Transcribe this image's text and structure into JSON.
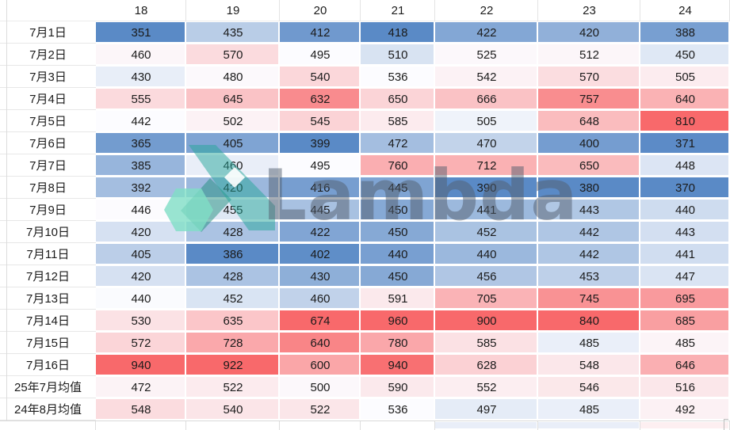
{
  "watermark": {
    "text": "Lambda",
    "logo_colors": {
      "ribbon_teal": "#26A69A",
      "leg_dark_teal": "#1F8E7E",
      "hex_mint": "#7FDEC6",
      "notch_white": "#FFFFFF"
    }
  },
  "chart_data": {
    "type": "heatmap",
    "title": "",
    "columns": [
      "18",
      "19",
      "20",
      "21",
      "22",
      "23",
      "24"
    ],
    "row_labels": [
      "7月1日",
      "7月2日",
      "7月3日",
      "7月4日",
      "7月5日",
      "7月6日",
      "7月7日",
      "7月8日",
      "7月9日",
      "7月10日",
      "7月11日",
      "7月12日",
      "7月13日",
      "7月14日",
      "7月15日",
      "7月16日",
      "25年7月均值",
      "24年8月均值"
    ],
    "values": [
      [
        351,
        435,
        412,
        418,
        422,
        420,
        388
      ],
      [
        460,
        570,
        495,
        510,
        525,
        512,
        450
      ],
      [
        430,
        480,
        540,
        536,
        542,
        570,
        505
      ],
      [
        555,
        645,
        632,
        650,
        666,
        757,
        640
      ],
      [
        442,
        502,
        545,
        585,
        505,
        648,
        810
      ],
      [
        365,
        405,
        399,
        472,
        470,
        400,
        371
      ],
      [
        385,
        460,
        495,
        760,
        712,
        650,
        448
      ],
      [
        392,
        420,
        416,
        445,
        390,
        380,
        370
      ],
      [
        446,
        455,
        445,
        450,
        441,
        443,
        440
      ],
      [
        420,
        428,
        422,
        450,
        452,
        442,
        443
      ],
      [
        405,
        386,
        402,
        440,
        440,
        442,
        441
      ],
      [
        420,
        428,
        430,
        450,
        456,
        453,
        447
      ],
      [
        440,
        452,
        460,
        591,
        705,
        745,
        695
      ],
      [
        530,
        635,
        674,
        960,
        900,
        840,
        685
      ],
      [
        572,
        728,
        640,
        780,
        585,
        485,
        485
      ],
      [
        940,
        922,
        600,
        940,
        628,
        548,
        646
      ],
      [
        472,
        522,
        500,
        590,
        552,
        546,
        516
      ],
      [
        548,
        540,
        522,
        536,
        497,
        485,
        492
      ]
    ],
    "color_scale": {
      "style": "3-color, applied per column",
      "min_color": "#5A8AC6",
      "mid_color": "#FCFCFF",
      "max_color": "#F8696B",
      "midpoint": "50th percentile of each column"
    },
    "partial_next_row_tints": {
      "22": "#E9EEF8",
      "23": "#E9EEF8",
      "24": "#FDEFF1"
    },
    "legend_position": "none",
    "grid": "light gray gridlines on white; white 2px gaps between colored cells"
  }
}
